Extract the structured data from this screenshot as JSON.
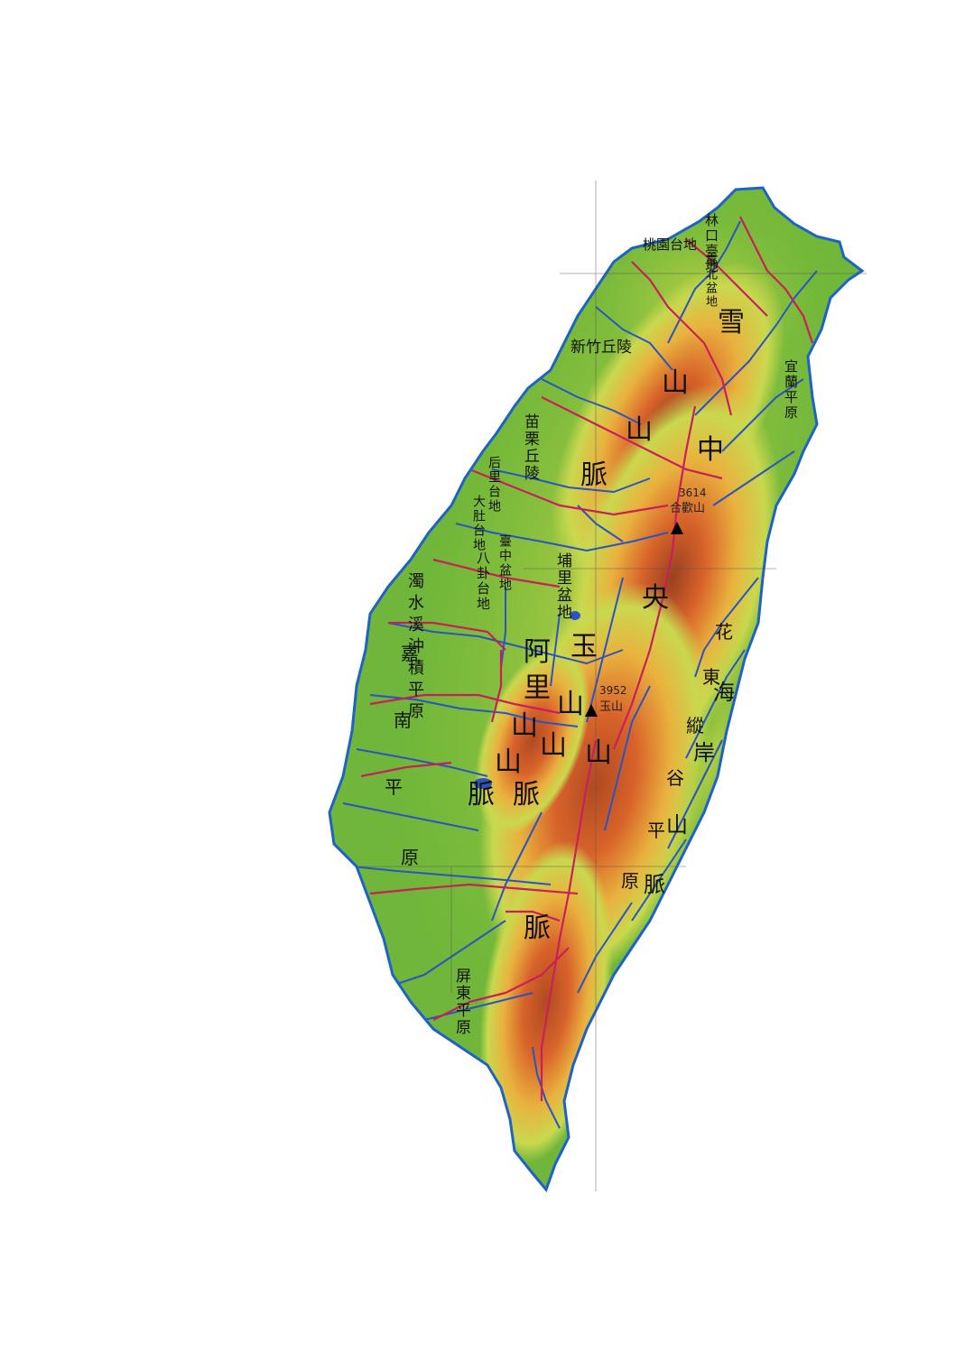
{
  "map": {
    "colors": {
      "lowland": "#6fb63a",
      "hill": "#c9d84e",
      "upland": "#e9b23e",
      "mountain": "#d8632a",
      "summit": "#9a4020",
      "coast": "#1c62c8",
      "river": "#2a55c0",
      "road": "#c8205a",
      "grid": "#555555"
    },
    "regions": {
      "taoyuan": "桃園台地",
      "linkou": "林口臺地",
      "taipei": "臺北盆地",
      "hsinchu": "新竹丘陵",
      "yilan": "宜蘭平原",
      "miaoli": "苗栗丘陵",
      "houli": "后里台地",
      "dadu": "大肚台地",
      "taichung": "臺中盆地",
      "bagua": "八卦台地",
      "puli": "埔里盆地",
      "zhuoshui": "濁水溪沖積平原",
      "pingtung": "屏東平原"
    },
    "ranges": {
      "xueshan": [
        "雪",
        "山",
        "山",
        "脈"
      ],
      "central": [
        "中",
        "央",
        "山",
        "脈"
      ],
      "yushan": [
        "玉",
        "山",
        "山",
        "脈"
      ],
      "alishan": [
        "阿",
        "里",
        "山",
        "山",
        "脈"
      ],
      "coastal": [
        "海",
        "岸",
        "山",
        "脈"
      ],
      "jianan": [
        "嘉",
        "南",
        "平",
        "原"
      ],
      "valley": [
        "花",
        "東",
        "縱",
        "谷",
        "平",
        "原"
      ]
    },
    "peaks": [
      {
        "name": "合歡山",
        "elev": "3614",
        "icon": "triangle-icon"
      },
      {
        "name": "玉山",
        "elev": "3952",
        "icon": "triangle-icon"
      }
    ]
  }
}
